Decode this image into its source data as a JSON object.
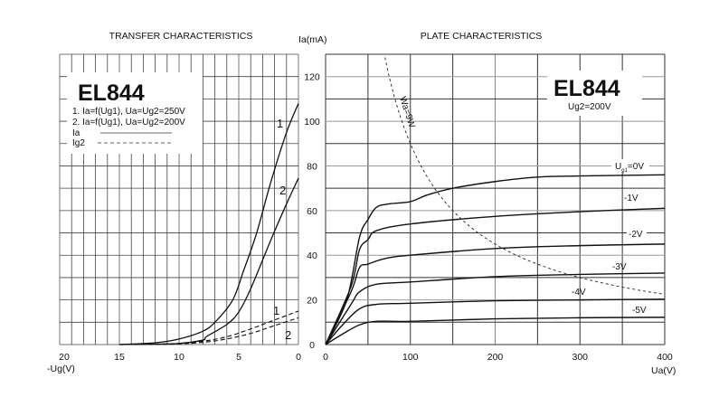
{
  "chart_data": [
    {
      "type": "line",
      "title": "TRANSFER  CHARACTERISTICS",
      "xlabel": "-Ug(V)",
      "ylabel": "Ia(mA)",
      "xlim": [
        20,
        0
      ],
      "ylim": [
        0,
        130
      ],
      "x_ticks": [
        20,
        15,
        10,
        5,
        0
      ],
      "y_ticks": [
        0,
        20,
        40,
        60,
        80,
        100,
        120
      ],
      "grid": true,
      "legend": {
        "heading": "EL844",
        "lines": [
          "1. Ia=f(Ug1), Ua=Ug2=250V",
          "2. Ia=f(Ug1), Ua=Ug2=200V"
        ],
        "solid_label": "Ia",
        "dashed_label": "Ig2",
        "placement": "top-left"
      },
      "series": [
        {
          "name": "1",
          "kind": "Ia",
          "style": "solid",
          "x": [
            15,
            12,
            10,
            8,
            6.9,
            5.5,
            4.6,
            3.5,
            2.3,
            1,
            0
          ],
          "y": [
            0,
            0.8,
            2.5,
            6,
            10.5,
            20,
            33,
            50,
            73,
            95,
            108
          ]
        },
        {
          "name": "2",
          "kind": "Ia",
          "style": "solid",
          "x": [
            15,
            12,
            10,
            8,
            7.7,
            6,
            5,
            4,
            2.3,
            1,
            0
          ],
          "y": [
            0,
            0.2,
            0.5,
            2,
            3.6,
            9,
            14.6,
            25,
            47,
            63,
            74.5
          ]
        },
        {
          "name": "1",
          "kind": "Ig2",
          "style": "dashed",
          "x": [
            15,
            12,
            10,
            8,
            6,
            4,
            2,
            0
          ],
          "y": [
            0,
            0.2,
            0.5,
            1.5,
            3.5,
            7,
            11,
            15
          ]
        },
        {
          "name": "2",
          "kind": "Ig2",
          "style": "dashed",
          "x": [
            15,
            12,
            10,
            8,
            6,
            4,
            2,
            0
          ],
          "y": [
            0,
            0.1,
            0.3,
            1,
            2.5,
            5,
            8.5,
            12
          ]
        }
      ]
    },
    {
      "type": "line",
      "title": "PLATE CHARACTERISTICS",
      "xlabel": "Ua(V)",
      "ylabel": "Ia(mA)",
      "xlim": [
        0,
        400
      ],
      "ylim": [
        0,
        130
      ],
      "x_ticks": [
        0,
        100,
        200,
        300,
        400
      ],
      "y_ticks": [
        0,
        20,
        40,
        60,
        80,
        100,
        120
      ],
      "grid": true,
      "heading": "EL844",
      "subheading": "Ug2=200V",
      "power_curve": {
        "label": "Wa=9W",
        "label_main": "W",
        "label_sub": "a",
        "label_rest": "=9W",
        "watts": 9
      },
      "series": [
        {
          "name": "Ug1=0V",
          "label_main": "U",
          "label_sub": "g1",
          "label_rest": "=0V",
          "x": [
            0,
            25,
            40,
            50,
            60,
            75,
            100,
            120,
            150,
            200,
            250,
            300,
            400
          ],
          "y": [
            0,
            20,
            48,
            56,
            61.5,
            63,
            64,
            67,
            70,
            73,
            75,
            75.5,
            76
          ]
        },
        {
          "name": "-1V",
          "x": [
            0,
            30,
            40,
            50,
            60,
            100,
            200,
            300,
            400
          ],
          "y": [
            0,
            26,
            42.5,
            47,
            51,
            54,
            57.4,
            59.5,
            61
          ]
        },
        {
          "name": "-2V",
          "x": [
            0,
            30,
            40,
            50,
            70,
            100,
            200,
            300,
            400
          ],
          "y": [
            0,
            23.6,
            34.5,
            36,
            38.5,
            40,
            43,
            44.3,
            45
          ]
        },
        {
          "name": "-3V",
          "x": [
            0,
            30,
            40,
            60,
            100,
            200,
            300,
            400
          ],
          "y": [
            0,
            18,
            23.6,
            27,
            28,
            30.4,
            31.4,
            32
          ]
        },
        {
          "name": "-4V",
          "x": [
            0,
            20,
            40,
            60,
            100,
            200,
            300,
            400
          ],
          "y": [
            0,
            8.8,
            16,
            18,
            18.5,
            19.6,
            20,
            20.3
          ]
        },
        {
          "name": "-5V",
          "x": [
            0,
            20,
            40,
            60,
            100,
            200,
            300,
            400
          ],
          "y": [
            0,
            4.7,
            8.8,
            10.4,
            10.4,
            11.5,
            12,
            12.2
          ]
        }
      ]
    }
  ]
}
